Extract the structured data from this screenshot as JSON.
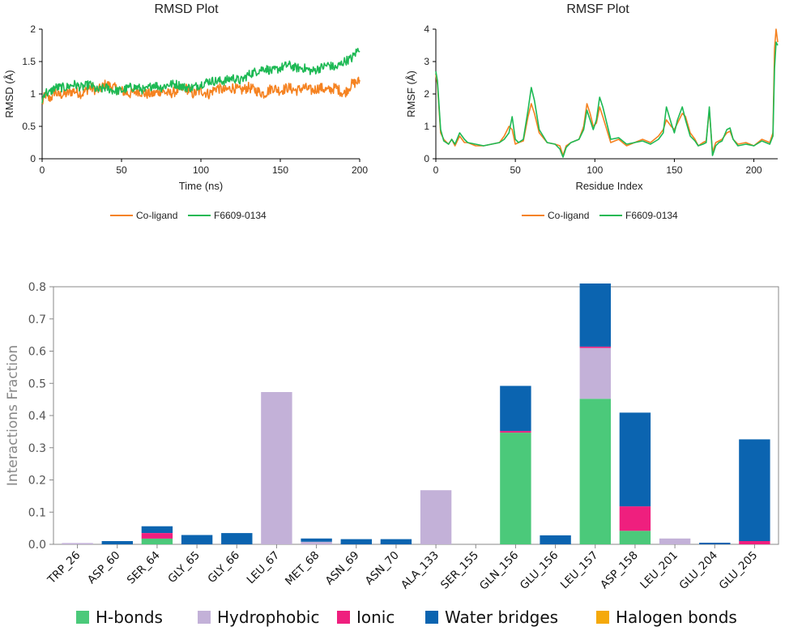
{
  "chart_data": [
    {
      "id": "rmsd",
      "type": "line",
      "title": "RMSD Plot",
      "xlabel": "Time (ns)",
      "ylabel": "RMSD (Å)",
      "xlim": [
        0,
        200
      ],
      "ylim": [
        0,
        2
      ],
      "xticks": [
        "0",
        "50",
        "100",
        "150",
        "200"
      ],
      "yticks": [
        "0",
        "0.5",
        "1",
        "1.5",
        "2"
      ],
      "grid": false,
      "legend_position": "bottom-center",
      "series": [
        {
          "name": "Co-ligand",
          "color": "#f58220",
          "x": [
            0,
            2,
            4,
            6,
            8,
            10,
            15,
            20,
            25,
            30,
            35,
            40,
            45,
            50,
            55,
            60,
            65,
            70,
            75,
            80,
            85,
            90,
            95,
            100,
            105,
            110,
            115,
            120,
            125,
            130,
            135,
            140,
            145,
            150,
            155,
            160,
            165,
            170,
            175,
            180,
            185,
            190,
            195,
            200
          ],
          "y": [
            0.85,
            1.0,
            0.92,
            0.95,
            1.05,
            0.98,
            1.0,
            1.05,
            1.0,
            1.1,
            1.05,
            1.15,
            1.1,
            1.05,
            1.0,
            1.05,
            1.0,
            1.0,
            1.05,
            1.0,
            1.05,
            1.1,
            1.0,
            1.05,
            1.0,
            1.1,
            1.05,
            1.1,
            1.05,
            1.1,
            1.05,
            1.0,
            1.1,
            1.05,
            1.1,
            1.05,
            1.1,
            1.05,
            1.1,
            1.05,
            1.1,
            1.0,
            1.15,
            1.2
          ],
          "amp": 0.08
        },
        {
          "name": "F6609-0134",
          "color": "#1db954",
          "x": [
            0,
            2,
            4,
            6,
            8,
            10,
            15,
            20,
            25,
            30,
            35,
            40,
            45,
            50,
            55,
            60,
            65,
            70,
            75,
            80,
            85,
            90,
            95,
            100,
            105,
            110,
            115,
            120,
            125,
            130,
            135,
            140,
            145,
            150,
            155,
            160,
            165,
            170,
            175,
            180,
            185,
            190,
            195,
            198,
            200
          ],
          "y": [
            0.9,
            1.05,
            1.0,
            1.05,
            1.1,
            1.1,
            1.1,
            1.15,
            1.1,
            1.15,
            1.05,
            1.1,
            1.05,
            1.05,
            1.1,
            1.1,
            1.05,
            1.15,
            1.1,
            1.15,
            1.15,
            1.1,
            1.1,
            1.15,
            1.2,
            1.2,
            1.2,
            1.25,
            1.2,
            1.3,
            1.35,
            1.4,
            1.35,
            1.4,
            1.45,
            1.4,
            1.4,
            1.35,
            1.4,
            1.45,
            1.4,
            1.5,
            1.55,
            1.65,
            1.72
          ],
          "amp": 0.07
        }
      ]
    },
    {
      "id": "rmsf",
      "type": "line",
      "title": "RMSF Plot",
      "xlabel": "Residue Index",
      "ylabel": "RMSF (Å)",
      "xlim": [
        0,
        215
      ],
      "ylim": [
        0,
        4
      ],
      "xticks": [
        "0",
        "50",
        "100",
        "150",
        "200"
      ],
      "yticks": [
        "0",
        "1",
        "2",
        "3",
        "4"
      ],
      "grid": false,
      "legend_position": "bottom-center",
      "series": [
        {
          "name": "Co-ligand",
          "color": "#f58220",
          "x": [
            0,
            1,
            3,
            5,
            8,
            10,
            12,
            15,
            18,
            20,
            25,
            30,
            35,
            40,
            43,
            46,
            48,
            50,
            52,
            55,
            58,
            60,
            62,
            65,
            70,
            75,
            78,
            80,
            82,
            85,
            90,
            93,
            95,
            97,
            99,
            101,
            103,
            105,
            110,
            115,
            120,
            125,
            130,
            135,
            140,
            143,
            145,
            148,
            150,
            152,
            155,
            157,
            160,
            163,
            165,
            168,
            170,
            172,
            174,
            176,
            178,
            180,
            183,
            185,
            187,
            190,
            195,
            200,
            205,
            210,
            212,
            213,
            214,
            215
          ],
          "y": [
            2.6,
            2.3,
            0.8,
            0.6,
            0.45,
            0.6,
            0.4,
            0.7,
            0.5,
            0.5,
            0.4,
            0.4,
            0.45,
            0.5,
            0.7,
            1.0,
            0.9,
            0.45,
            0.5,
            0.55,
            1.3,
            1.7,
            1.4,
            0.8,
            0.5,
            0.45,
            0.4,
            0.1,
            0.4,
            0.5,
            0.6,
            1.0,
            1.7,
            1.4,
            1.0,
            1.1,
            1.6,
            1.3,
            0.5,
            0.6,
            0.4,
            0.5,
            0.6,
            0.5,
            0.7,
            0.9,
            1.2,
            1.0,
            0.9,
            1.1,
            1.4,
            1.3,
            0.8,
            0.6,
            0.4,
            0.5,
            0.55,
            1.5,
            0.2,
            0.5,
            0.55,
            0.6,
            0.8,
            0.85,
            0.6,
            0.45,
            0.5,
            0.4,
            0.6,
            0.5,
            0.8,
            3.4,
            4.0,
            3.6
          ],
          "amp": 0
        },
        {
          "name": "F6609-0134",
          "color": "#1db954",
          "x": [
            0,
            1,
            3,
            5,
            8,
            10,
            12,
            15,
            18,
            20,
            25,
            30,
            35,
            40,
            43,
            46,
            48,
            50,
            52,
            55,
            58,
            60,
            62,
            65,
            70,
            75,
            78,
            80,
            82,
            85,
            90,
            93,
            95,
            97,
            99,
            101,
            103,
            105,
            110,
            115,
            120,
            125,
            130,
            135,
            140,
            143,
            145,
            148,
            150,
            152,
            155,
            157,
            160,
            163,
            165,
            168,
            170,
            172,
            174,
            176,
            178,
            180,
            183,
            185,
            187,
            190,
            195,
            200,
            205,
            210,
            212,
            213,
            214,
            215
          ],
          "y": [
            2.7,
            2.4,
            0.9,
            0.55,
            0.45,
            0.6,
            0.45,
            0.8,
            0.6,
            0.5,
            0.45,
            0.4,
            0.45,
            0.5,
            0.6,
            0.8,
            1.3,
            0.6,
            0.5,
            0.6,
            1.5,
            2.2,
            1.8,
            0.9,
            0.5,
            0.45,
            0.3,
            0.05,
            0.35,
            0.5,
            0.6,
            0.9,
            1.5,
            1.2,
            0.9,
            1.2,
            1.9,
            1.6,
            0.6,
            0.65,
            0.45,
            0.5,
            0.55,
            0.45,
            0.6,
            0.8,
            1.6,
            1.1,
            0.8,
            1.2,
            1.6,
            1.2,
            0.7,
            0.55,
            0.4,
            0.45,
            0.5,
            1.6,
            0.1,
            0.4,
            0.5,
            0.55,
            0.9,
            0.95,
            0.6,
            0.4,
            0.45,
            0.4,
            0.55,
            0.45,
            0.7,
            2.8,
            3.6,
            3.5
          ],
          "amp": 0
        }
      ]
    },
    {
      "id": "interactions",
      "type": "bar",
      "stacked": true,
      "title": "",
      "xlabel": "",
      "ylabel": "Interactions Fraction",
      "ylim": [
        0,
        0.8
      ],
      "yticks": [
        "0.0",
        "0.1",
        "0.2",
        "0.3",
        "0.4",
        "0.5",
        "0.6",
        "0.7",
        "0.8"
      ],
      "grid": false,
      "legend_position": "bottom",
      "categories": [
        "TRP_26",
        "ASP_60",
        "SER_64",
        "GLY_65",
        "GLY_66",
        "LEU_67",
        "MET_68",
        "ASN_69",
        "ASN_70",
        "ALA_133",
        "SER_155",
        "GLN_156",
        "GLU_156",
        "LEU_157",
        "ASP_158",
        "LEU_201",
        "GLU_204",
        "GLU_205"
      ],
      "series": [
        {
          "name": "H-bonds",
          "color": "#4bc97a",
          "values": [
            0,
            0,
            0.018,
            0,
            0,
            0,
            0,
            0,
            0,
            0,
            0,
            0.347,
            0,
            0.452,
            0.042,
            0,
            0,
            0
          ]
        },
        {
          "name": "Hydrophobic",
          "color": "#c3b1d8",
          "values": [
            0.004,
            0,
            0,
            0,
            0,
            0.473,
            0.008,
            0,
            0,
            0.168,
            0,
            0,
            0,
            0.158,
            0,
            0.018,
            0,
            0
          ]
        },
        {
          "name": "Ionic",
          "color": "#ef1f7e",
          "values": [
            0,
            0,
            0.017,
            0,
            0,
            0,
            0,
            0,
            0,
            0,
            0,
            0.005,
            0,
            0.004,
            0.076,
            0,
            0,
            0.01
          ]
        },
        {
          "name": "Water bridges",
          "color": "#0b64b0",
          "values": [
            0,
            0.01,
            0.021,
            0.029,
            0.035,
            0,
            0.01,
            0.016,
            0.016,
            0,
            0,
            0.14,
            0.028,
            0.196,
            0.291,
            0,
            0.005,
            0.316
          ]
        },
        {
          "name": "Halogen bonds",
          "color": "#f5a90a",
          "values": [
            0,
            0,
            0,
            0,
            0,
            0,
            0,
            0,
            0,
            0,
            0,
            0,
            0,
            0,
            0,
            0,
            0,
            0
          ]
        }
      ]
    }
  ]
}
